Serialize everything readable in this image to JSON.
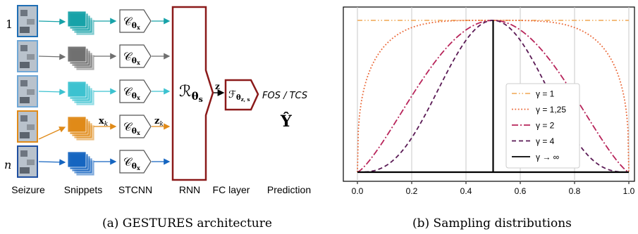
{
  "architecture": {
    "row_label_top": "1",
    "row_label_bottom": "n",
    "cnn_symbol": "𝒞",
    "cnn_subscript": "θ",
    "cnn_subsub": "x",
    "xk_label": "x",
    "xk_sub": "k",
    "zk_label": "z",
    "zk_sub": "k",
    "rnn_symbol": "ℛ",
    "rnn_subscript": "θ",
    "rnn_subsub": "s",
    "z_label": "z",
    "fc_symbol": "ℱ",
    "fc_subscript": "θ",
    "fc_subsub": "z, s",
    "output_text": "FOS / TCS",
    "yhat": "Ŷ",
    "stage_labels": [
      "Seizure",
      "Snippets",
      "STCNN",
      "RNN",
      "FC layer",
      "Prediction"
    ],
    "row_colors": [
      "#17a2a8",
      "#707070",
      "#3cc2d0",
      "#e08a18",
      "#1565c0"
    ],
    "caption": "(a) GESTURES architecture"
  },
  "chart_data": {
    "type": "line",
    "x_ticks": [
      "0.0",
      "0.2",
      "0.4",
      "0.6",
      "0.8",
      "1.0"
    ],
    "xlim": [
      0,
      1
    ],
    "ylim": [
      0,
      1
    ],
    "grid": "vertical",
    "legend_placement": "center-right",
    "series": [
      {
        "name": "γ = 1",
        "gamma": 1,
        "color": "#f2b36a",
        "dash": "dashdot-dotdot"
      },
      {
        "name": "γ = 1,25",
        "gamma": 1.25,
        "color": "#ea6a3a",
        "dash": "dotted"
      },
      {
        "name": "γ = 2",
        "gamma": 2,
        "color": "#b8245a",
        "dash": "dashdot"
      },
      {
        "name": "γ = 4",
        "gamma": 4,
        "color": "#5a1a55",
        "dash": "dashed"
      },
      {
        "name": "γ → ∞",
        "gamma": "inf",
        "color": "#000000",
        "dash": "solid"
      }
    ],
    "caption": "(b) Sampling distributions"
  }
}
